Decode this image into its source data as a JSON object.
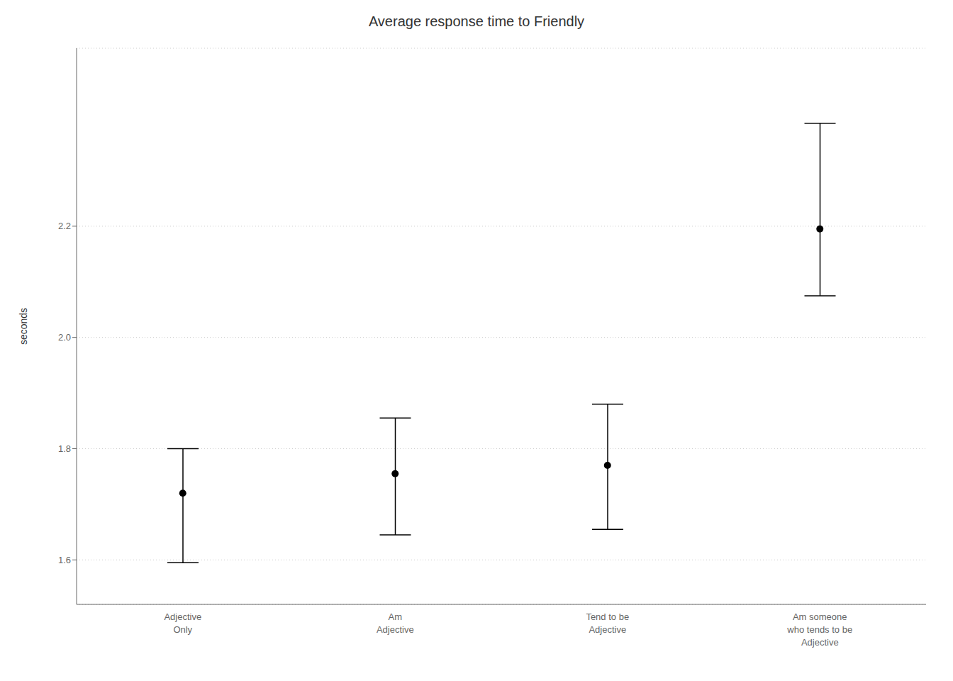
{
  "chart_data": {
    "type": "scatter",
    "title": "Average response time to Friendly",
    "ylabel": "seconds",
    "categories": [
      "Adjective\nOnly",
      "Am\nAdjective",
      "Tend to be\nAdjective",
      "Am someone\nwho tends to be\nAdjective"
    ],
    "values": [
      1.72,
      1.755,
      1.77,
      2.195
    ],
    "ci_lower": [
      1.595,
      1.645,
      1.655,
      2.075
    ],
    "ci_upper": [
      1.8,
      1.855,
      1.88,
      2.385
    ],
    "ylim": [
      1.52,
      2.52
    ],
    "yticks": [
      1.6,
      1.8,
      {
        "value": 2.0,
        "label": "2.0"
      },
      2.2
    ],
    "color": "#000000",
    "grid": true
  }
}
